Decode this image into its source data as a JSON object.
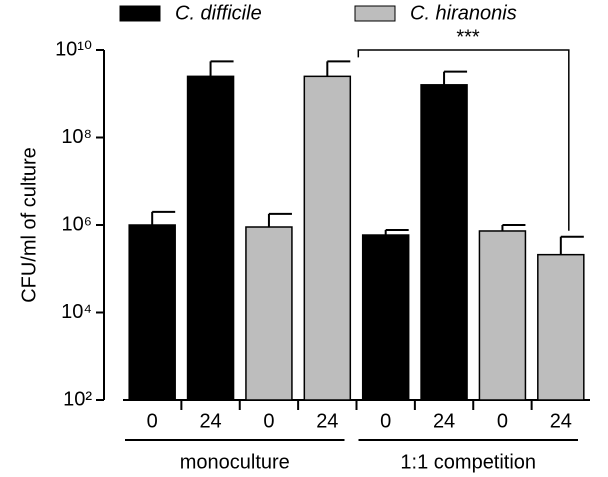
{
  "chart_data": {
    "type": "bar",
    "categories": [
      "0",
      "24",
      "0",
      "24",
      "0",
      "24",
      "0",
      "24"
    ],
    "group_labels": [
      "monoculture",
      "1:1 competition"
    ],
    "y_label": "CFU/ml of culture",
    "log_scale": true,
    "ylim": [
      100,
      10000000000
    ],
    "yticks": [
      {
        "value": 100,
        "label": "10²"
      },
      {
        "value": 10000,
        "label": "10⁴"
      },
      {
        "value": 1000000,
        "label": "10⁶"
      },
      {
        "value": 100000000,
        "label": "10⁸"
      },
      {
        "value": 10000000000,
        "label": "10¹⁰"
      }
    ],
    "series": [
      {
        "name": "C. difficile",
        "color": "#000000",
        "values": [
          1000000,
          2500000000,
          null,
          null,
          590000,
          1600000000,
          null,
          null
        ],
        "errors": [
          1000000,
          3000000000,
          null,
          null,
          180000,
          1600000000,
          null,
          null
        ]
      },
      {
        "name": "C. hiranonis",
        "color": "#bdbdbd",
        "values": [
          null,
          null,
          900000,
          2500000000,
          null,
          null,
          730000,
          210000
        ],
        "errors": [
          null,
          null,
          900000,
          3000000000,
          null,
          null,
          270000,
          330000
        ]
      }
    ],
    "annotation": "***"
  }
}
